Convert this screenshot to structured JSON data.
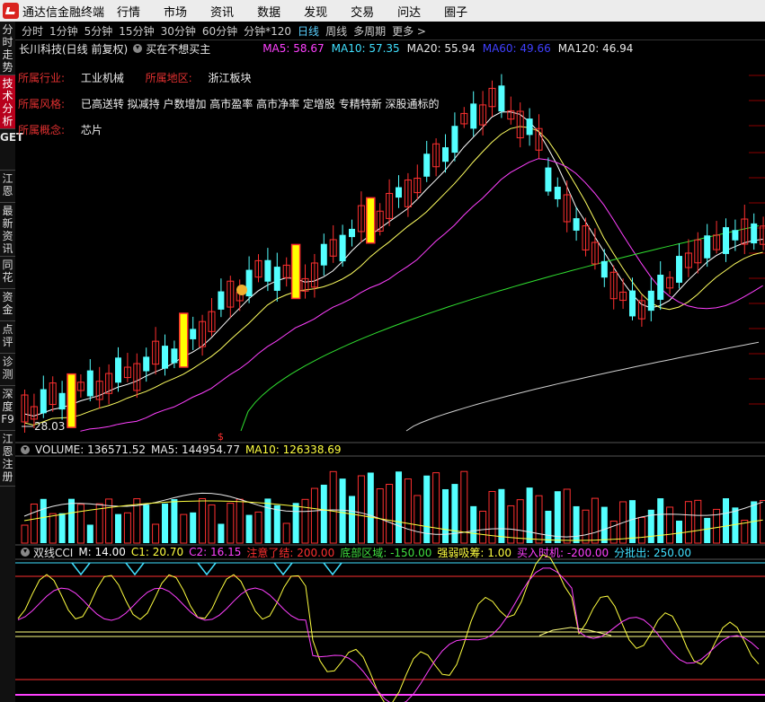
{
  "menubar": {
    "app_title": "通达信金融终端",
    "items": [
      "行情",
      "市场",
      "资讯",
      "数据",
      "发现",
      "交易",
      "问达",
      "圈子"
    ]
  },
  "left_tabs": [
    {
      "label": "分时走势",
      "active": false
    },
    {
      "label": "技术分析",
      "active": true
    },
    {
      "label": "GET",
      "active": false
    },
    {
      "label": "江恩",
      "active": false
    },
    {
      "label": "最新资讯",
      "active": false
    },
    {
      "label": "同花",
      "active": false
    },
    {
      "label": "资金",
      "active": false
    },
    {
      "label": "点评",
      "active": false
    },
    {
      "label": "诊测",
      "active": false
    },
    {
      "label": "深度F9",
      "active": false
    },
    {
      "label": "江恩注册",
      "active": false
    }
  ],
  "periods": {
    "items": [
      "分时",
      "1分钟",
      "5分钟",
      "15分钟",
      "30分钟",
      "60分钟",
      "分钟*120",
      "日线",
      "周线",
      "多周期",
      "更多 >"
    ],
    "selected": "日线"
  },
  "header": {
    "stock": "长川科技(日线 前复权)",
    "signal": "买在不想买主",
    "ma": [
      {
        "label": "MA5: 58.67",
        "color": "#ff40ff"
      },
      {
        "label": "MA10: 57.35",
        "color": "#40e0ff"
      },
      {
        "label": "MA20: 55.94",
        "color": "#e8e8e8"
      },
      {
        "label": "MA60: 49.66",
        "color": "#4040ff"
      },
      {
        "label": "MA120: 46.94",
        "color": "#e8e8e8"
      }
    ]
  },
  "info": {
    "industry_label": "所属行业:",
    "industry_value": "工业机械",
    "region_label": "所属地区:",
    "region_value": "浙江板块",
    "style_label": "所属风格:",
    "style_value": "已高送转 拟减持 户数增加 高市盈率 高市净率 定增股 专精特新 深股通标的",
    "concept_label": "所属概念:",
    "concept_value": "芯片"
  },
  "price_marker": "28.03",
  "volume": {
    "label": "VOLUME: 136571.52",
    "ma5": "MA5: 144954.77",
    "ma10": "MA10: 126338.69"
  },
  "cci": {
    "name": "双线CCI",
    "params": [
      {
        "text": "M: 14.00",
        "color": "#ffffff"
      },
      {
        "text": "C1: 20.70",
        "color": "#ffff40"
      },
      {
        "text": "C2: 16.15",
        "color": "#ff40ff"
      },
      {
        "text": "注意了结: 200.00",
        "color": "#ff3030"
      },
      {
        "text": "底部区域: -150.00",
        "color": "#40e040"
      },
      {
        "text": "强弱吸筹: 1.00",
        "color": "#ffff40"
      },
      {
        "text": "买入时机: -200.00",
        "color": "#ff40ff"
      },
      {
        "text": "分批出: 250.00",
        "color": "#40e0ff"
      }
    ]
  },
  "colors": {
    "up": "#ff3030",
    "down": "#54ffff",
    "highlight": "#ffff00",
    "ma5": "#ffffff",
    "ma10": "#ffff60",
    "ma20": "#ff40ff",
    "ma60": "#30e030",
    "ma120": "#d0d0d0"
  }
}
